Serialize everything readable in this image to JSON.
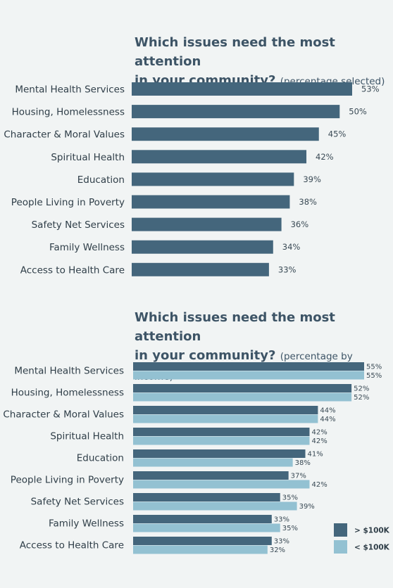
{
  "colors": {
    "dark": "#44667c",
    "light": "#93c1d2",
    "background": "#f1f4f4"
  },
  "chart1": {
    "title_main_line1": "Which issues need the most attention",
    "title_main_line2": "in your community?",
    "title_sub": "(percentage selected)"
  },
  "chart2": {
    "title_main_line1": "Which issues need the most attention",
    "title_main_line2": "in your community?",
    "title_sub": "(percentage by income)"
  },
  "chart_data": [
    {
      "type": "bar",
      "orientation": "horizontal",
      "title": "Which issues need the most attention in your community? (percentage selected)",
      "categories": [
        "Mental Health Services",
        "Housing, Homelessness",
        "Character & Moral Values",
        "Spiritual Health",
        "Education",
        "People Living in Poverty",
        "Safety Net Services",
        "Family Wellness",
        "Access to Health Care"
      ],
      "values": [
        53,
        50,
        45,
        42,
        39,
        38,
        36,
        34,
        33
      ],
      "value_labels": [
        "53%",
        "50%",
        "45%",
        "42%",
        "39%",
        "38%",
        "36%",
        "34%",
        "33%"
      ],
      "xlim": [
        0,
        53
      ]
    },
    {
      "type": "bar",
      "orientation": "horizontal",
      "title": "Which issues need the most attention in your community? (percentage by income)",
      "categories": [
        "Mental Health Services",
        "Housing, Homelessness",
        "Character & Moral Values",
        "Spiritual Health",
        "Education",
        "People Living in Poverty",
        "Safety Net Services",
        "Family Wellness",
        "Access to Health Care"
      ],
      "series": [
        {
          "name": "> $100K",
          "values": [
            55,
            52,
            44,
            42,
            41,
            37,
            35,
            33,
            33
          ],
          "value_labels": [
            "55%",
            "52%",
            "44%",
            "42%",
            "41%",
            "37%",
            "35%",
            "33%",
            "33%"
          ]
        },
        {
          "name": "< $100K",
          "values": [
            55,
            52,
            44,
            42,
            38,
            42,
            39,
            35,
            32
          ],
          "value_labels": [
            "55%",
            "52%",
            "44%",
            "42%",
            "38%",
            "42%",
            "39%",
            "35%",
            "32%"
          ]
        }
      ],
      "xlim": [
        0,
        55
      ],
      "legend": "bottom-right"
    }
  ]
}
